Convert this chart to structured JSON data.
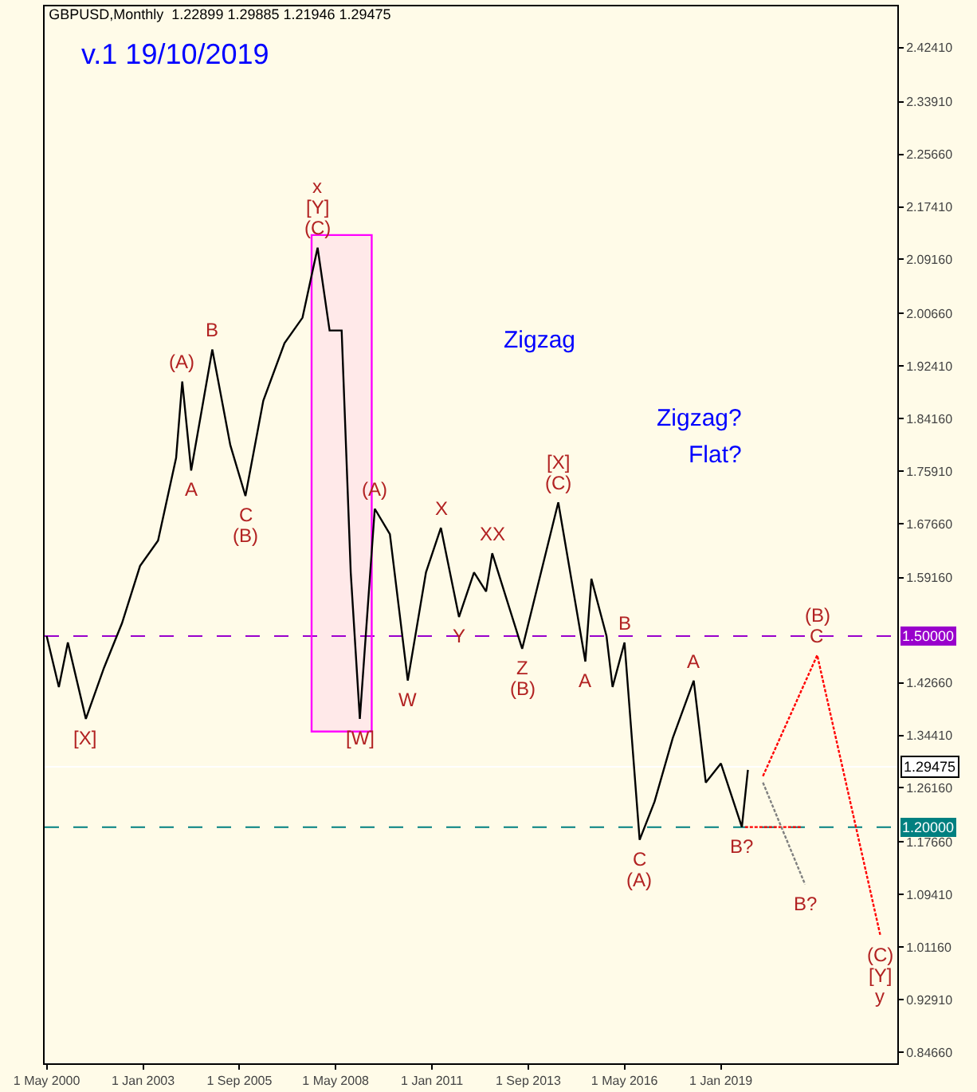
{
  "chart_data": {
    "type": "line",
    "title": "GBPUSD,Monthly  1.22899 1.29885 1.21946 1.29475",
    "subtitle": "v.1 19/10/2019",
    "xlim": [
      "2000-04-10",
      "2023-11-20"
    ],
    "xticks": [
      {
        "value": "2000-05-01",
        "label": "1 May 2000"
      },
      {
        "value": "2003-01-01",
        "label": "1 Jan 2003"
      },
      {
        "value": "2005-09-01",
        "label": "1 Sep 2005"
      },
      {
        "value": "2008-05-01",
        "label": "1 May 2008"
      },
      {
        "value": "2011-01-01",
        "label": "1 Jan 2011"
      },
      {
        "value": "2013-09-01",
        "label": "1 Sep 2013"
      },
      {
        "value": "2016-05-01",
        "label": "1 May 2016"
      },
      {
        "value": "2019-01-01",
        "label": "1 Jan 2019"
      }
    ],
    "ylim": [
      0.829,
      2.489
    ],
    "yticks": [
      {
        "value": 0.8466,
        "label": "0.84660"
      },
      {
        "value": 0.9291,
        "label": "0.92910"
      },
      {
        "value": 1.0116,
        "label": "1.01160"
      },
      {
        "value": 1.0941,
        "label": "1.09410"
      },
      {
        "value": 1.1766,
        "label": "1.17660"
      },
      {
        "value": 1.2616,
        "label": "1.26160"
      },
      {
        "value": 1.3441,
        "label": "1.34410"
      },
      {
        "value": 1.4266,
        "label": "1.42660"
      },
      {
        "value": 1.5916,
        "label": "1.59160"
      },
      {
        "value": 1.6766,
        "label": "1.67660"
      },
      {
        "value": 1.7591,
        "label": "1.75910"
      },
      {
        "value": 1.8416,
        "label": "1.84160"
      },
      {
        "value": 1.9241,
        "label": "1.92410"
      },
      {
        "value": 2.0066,
        "label": "2.00660"
      },
      {
        "value": 2.0916,
        "label": "2.09160"
      },
      {
        "value": 2.1741,
        "label": "2.17410"
      },
      {
        "value": 2.2566,
        "label": "2.25660"
      },
      {
        "value": 2.3391,
        "label": "2.33910"
      },
      {
        "value": 2.4241,
        "label": "2.42410"
      }
    ],
    "grid": false,
    "series": [
      {
        "color": "#000000",
        "line_style": "solid",
        "x": [
          "2000-05",
          "2000-09",
          "2000-12",
          "2001-06",
          "2001-12",
          "2002-06",
          "2002-12",
          "2003-06",
          "2003-12",
          "2004-02",
          "2004-05",
          "2004-12",
          "2005-06",
          "2005-11",
          "2006-05",
          "2006-12",
          "2007-06",
          "2007-11",
          "2008-03",
          "2008-07",
          "2008-10",
          "2009-01",
          "2009-06",
          "2009-11",
          "2010-05",
          "2010-11",
          "2011-04",
          "2011-10",
          "2012-03",
          "2012-07",
          "2012-09",
          "2013-07",
          "2014-07",
          "2015-04",
          "2015-06",
          "2015-11",
          "2016-01",
          "2016-05",
          "2016-10",
          "2017-03",
          "2017-09",
          "2018-04",
          "2018-08",
          "2019-01",
          "2019-08",
          "2019-10"
        ],
        "values": [
          1.5,
          1.42,
          1.49,
          1.37,
          1.45,
          1.52,
          1.61,
          1.65,
          1.78,
          1.9,
          1.76,
          1.95,
          1.8,
          1.72,
          1.87,
          1.96,
          2.0,
          2.11,
          1.98,
          1.98,
          1.6,
          1.37,
          1.7,
          1.66,
          1.43,
          1.6,
          1.67,
          1.53,
          1.6,
          1.57,
          1.63,
          1.48,
          1.71,
          1.46,
          1.59,
          1.5,
          1.42,
          1.49,
          1.18,
          1.24,
          1.34,
          1.43,
          1.27,
          1.3,
          1.2,
          1.29
        ]
      },
      {
        "color": "#ff0000",
        "line_style": "dotted",
        "x": [
          "2020-03",
          "2021-09",
          "2023-06"
        ],
        "values": [
          1.28,
          1.47,
          1.03
        ]
      },
      {
        "color": "#ff0000",
        "line_style": "dotted",
        "x": [
          "2019-09",
          "2021-04"
        ],
        "values": [
          1.2,
          1.2
        ]
      },
      {
        "color": "#808080",
        "line_style": "dotted",
        "x": [
          "2020-03",
          "2021-05"
        ],
        "values": [
          1.27,
          1.11
        ]
      }
    ],
    "bands": [
      {
        "axis": "x",
        "from": "2007-09",
        "to": "2009-05",
        "color": "#ff00ff"
      }
    ],
    "ref_lines": [
      {
        "axis": "y",
        "value": 1.5,
        "label": "1.50000",
        "color": "#9900cc",
        "line_style": "dashed"
      },
      {
        "axis": "y",
        "value": 1.2,
        "label": "1.20000",
        "color": "#008080",
        "line_style": "dashed"
      },
      {
        "axis": "y",
        "value": 1.29475,
        "label": "1.29475",
        "color": "#ffffff",
        "line_style": "solid"
      }
    ],
    "annotations": [
      {
        "text": "(C)",
        "x": "2007-11",
        "y": 2.11
      },
      {
        "text": "[Y]",
        "x": "2007-11",
        "y": 2.11
      },
      {
        "text": "x",
        "x": "2007-11",
        "y": 2.11
      },
      {
        "text": "(A)",
        "x": "2004-02",
        "y": 1.9
      },
      {
        "text": "B",
        "x": "2004-12",
        "y": 1.95
      },
      {
        "text": "A",
        "x": "2004-05",
        "y": 1.76
      },
      {
        "text": "C",
        "x": "2005-11",
        "y": 1.72
      },
      {
        "text": "(B)",
        "x": "2005-11",
        "y": 1.72
      },
      {
        "text": "[X]",
        "x": "2001-06",
        "y": 1.37
      },
      {
        "text": "[W]",
        "x": "2009-01",
        "y": 1.37
      },
      {
        "text": "(A)",
        "x": "2009-06",
        "y": 1.7
      },
      {
        "text": "W",
        "x": "2010-05",
        "y": 1.43
      },
      {
        "text": "X",
        "x": "2011-04",
        "y": 1.67
      },
      {
        "text": "Y",
        "x": "2011-10",
        "y": 1.53
      },
      {
        "text": "XX",
        "x": "2012-09",
        "y": 1.63
      },
      {
        "text": "Z",
        "x": "2013-07",
        "y": 1.48
      },
      {
        "text": "(B)",
        "x": "2013-07",
        "y": 1.48
      },
      {
        "text": "(C)",
        "x": "2014-07",
        "y": 1.71
      },
      {
        "text": "[X]",
        "x": "2014-07",
        "y": 1.71
      },
      {
        "text": "A",
        "x": "2015-04",
        "y": 1.46
      },
      {
        "text": "B",
        "x": "2016-05",
        "y": 1.49
      },
      {
        "text": "C",
        "x": "2016-10",
        "y": 1.18
      },
      {
        "text": "(A)",
        "x": "2016-10",
        "y": 1.18
      },
      {
        "text": "A",
        "x": "2018-04",
        "y": 1.43
      },
      {
        "text": "B?",
        "x": "2019-08",
        "y": 1.2
      },
      {
        "text": "B?",
        "x": "2021-05",
        "y": 1.11
      },
      {
        "text": "C",
        "x": "2021-09",
        "y": 1.47
      },
      {
        "text": "(B)",
        "x": "2021-09",
        "y": 1.47
      },
      {
        "text": "(C)",
        "x": "2023-06",
        "y": 1.03
      },
      {
        "text": "[Y]",
        "x": "2023-06",
        "y": 1.03
      },
      {
        "text": "y",
        "x": "2023-06",
        "y": 1.03
      },
      "Zigzag",
      "Zigzag?",
      "Flat?"
    ]
  }
}
